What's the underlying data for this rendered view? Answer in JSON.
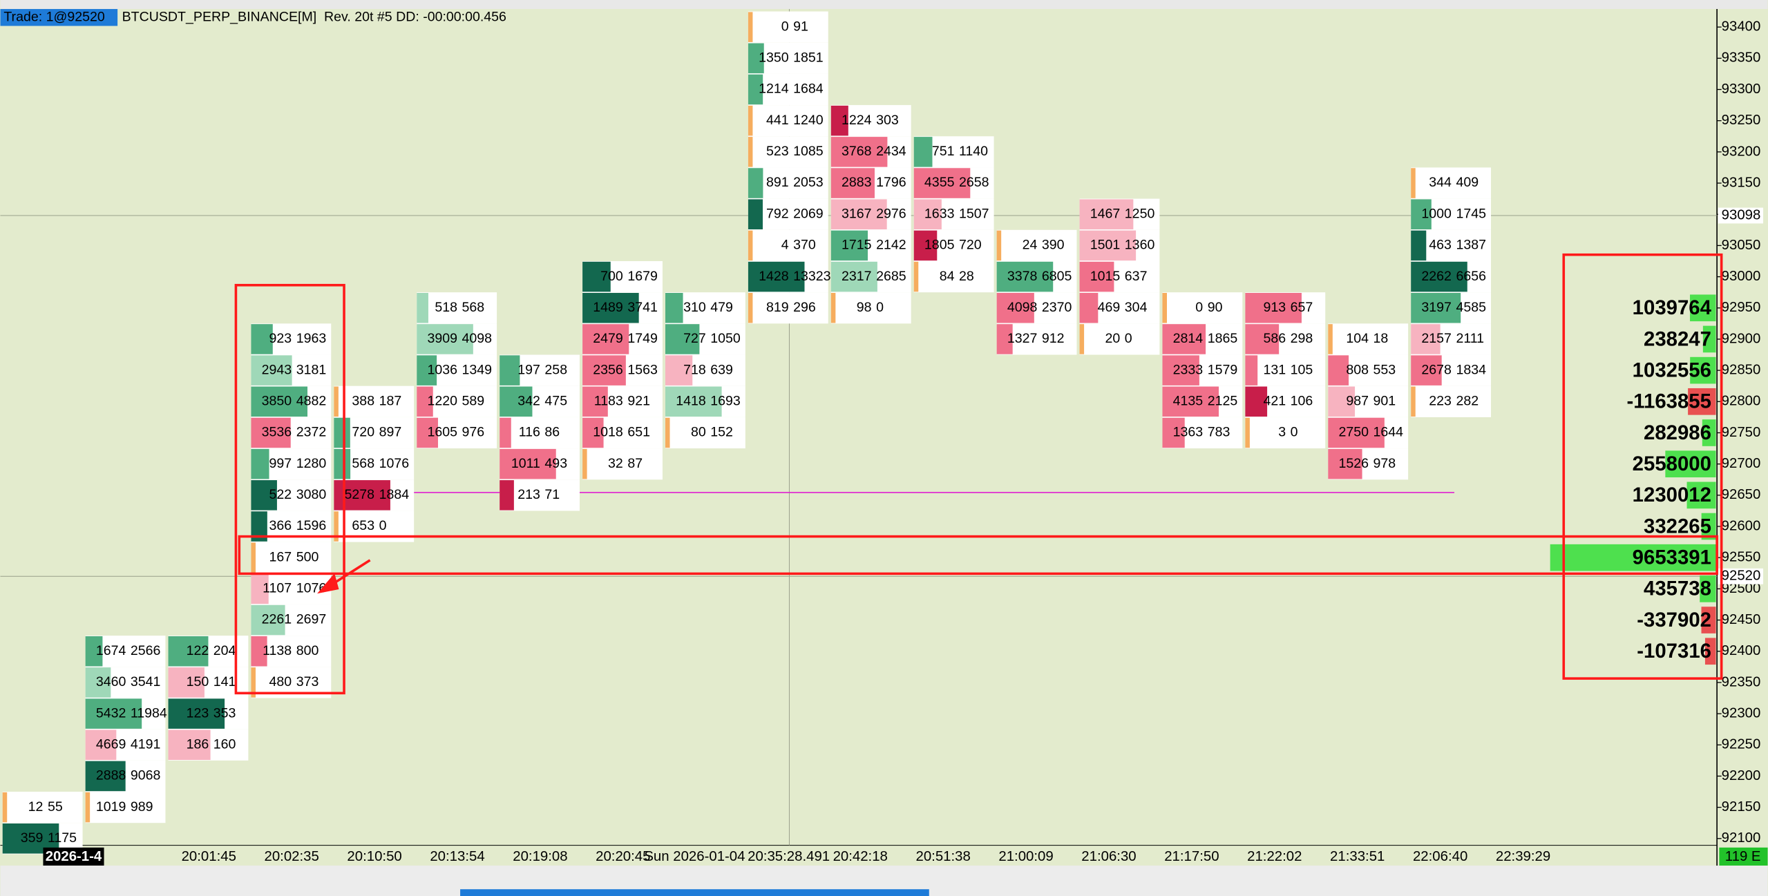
{
  "header": {
    "trade": "Trade: 1@92520",
    "symbol": "BTCUSDT_PERP_BINANCE[M]  Rev. 20t #5 DD: -00:00:00.456"
  },
  "price_axis": {
    "labels": [
      93400,
      93350,
      93300,
      93250,
      93200,
      93150,
      93100,
      93050,
      93000,
      92950,
      92900,
      92850,
      92800,
      92750,
      92700,
      92650,
      92600,
      92550,
      92500,
      92450,
      92400,
      92350,
      92300,
      92250,
      92200,
      92150,
      92100
    ],
    "markers": [
      93098,
      92520
    ]
  },
  "time_axis": {
    "date": "2026-1-4",
    "labels": [
      "20:01:45",
      "20:02:35",
      "20:10:50",
      "20:13:54",
      "20:19:08",
      "20:20:45",
      "Sun 2026-01-04",
      "20:35:28.491",
      "20:42:18",
      "20:51:38",
      "21:00:09",
      "21:06:30",
      "21:17:50",
      "21:22:02",
      "21:33:51",
      "22:06:40",
      "22:39:29"
    ],
    "status": "119 E"
  },
  "columns": [
    {
      "cells": [
        [
          92150,
          12,
          55
        ],
        [
          92100,
          359,
          1175
        ]
      ]
    },
    {
      "cells": [
        [
          92400,
          1674,
          2566
        ],
        [
          92350,
          3460,
          3541
        ],
        [
          92300,
          5432,
          11984
        ],
        [
          92250,
          4669,
          4191
        ],
        [
          92200,
          2888,
          9068
        ],
        [
          92150,
          1019,
          989
        ]
      ]
    },
    {
      "cells": [
        [
          92400,
          122,
          204
        ],
        [
          92350,
          150,
          141
        ],
        [
          92300,
          123,
          353
        ],
        [
          92250,
          186,
          160
        ]
      ]
    },
    {
      "cells": [
        [
          92900,
          923,
          1963
        ],
        [
          92850,
          2943,
          3181
        ],
        [
          92800,
          3850,
          4882
        ],
        [
          92750,
          3536,
          2372
        ],
        [
          92700,
          997,
          1280
        ],
        [
          92650,
          522,
          3080
        ],
        [
          92600,
          366,
          1596
        ],
        [
          92550,
          167,
          500
        ],
        [
          92500,
          1107,
          1076
        ],
        [
          92450,
          2261,
          2697
        ],
        [
          92400,
          1138,
          800
        ],
        [
          92350,
          480,
          373
        ]
      ]
    },
    {
      "cells": [
        [
          92800,
          388,
          187
        ],
        [
          92750,
          720,
          897
        ],
        [
          92700,
          568,
          1076
        ],
        [
          92650,
          5278,
          1884
        ],
        [
          92600,
          653,
          0
        ]
      ]
    },
    {
      "cells": [
        [
          92950,
          518,
          568
        ],
        [
          92900,
          3909,
          4098
        ],
        [
          92850,
          1036,
          1349
        ],
        [
          92800,
          1220,
          589
        ],
        [
          92750,
          1605,
          976
        ]
      ]
    },
    {
      "cells": [
        [
          92850,
          197,
          258
        ],
        [
          92800,
          342,
          475
        ],
        [
          92750,
          116,
          86
        ],
        [
          92700,
          1011,
          493
        ],
        [
          92650,
          213,
          71
        ]
      ]
    },
    {
      "cells": [
        [
          93000,
          700,
          1679
        ],
        [
          92950,
          1489,
          3741
        ],
        [
          92900,
          2479,
          1749
        ],
        [
          92850,
          2356,
          1563
        ],
        [
          92800,
          1183,
          921
        ],
        [
          92750,
          1018,
          651
        ],
        [
          92700,
          32,
          87
        ]
      ]
    },
    {
      "cells": [
        [
          92950,
          310,
          479
        ],
        [
          92900,
          727,
          1050
        ],
        [
          92850,
          718,
          639
        ],
        [
          92800,
          1418,
          1693
        ],
        [
          92750,
          80,
          152
        ]
      ]
    },
    {
      "cells": [
        [
          93400,
          0,
          91
        ],
        [
          93350,
          1350,
          1851
        ],
        [
          93300,
          1214,
          1684
        ],
        [
          93250,
          441,
          1240
        ],
        [
          93200,
          523,
          1085
        ],
        [
          93150,
          891,
          2053
        ],
        [
          93100,
          792,
          2069
        ],
        [
          93050,
          4,
          370
        ],
        [
          93000,
          1428,
          13323
        ],
        [
          92950,
          819,
          296
        ]
      ]
    },
    {
      "cells": [
        [
          93250,
          1224,
          303
        ],
        [
          93200,
          3768,
          2434
        ],
        [
          93150,
          2883,
          1796
        ],
        [
          93100,
          3167,
          2976
        ],
        [
          93050,
          1715,
          2142
        ],
        [
          93000,
          2317,
          2685
        ],
        [
          92950,
          98,
          0
        ]
      ]
    },
    {
      "cells": [
        [
          93200,
          751,
          1140
        ],
        [
          93150,
          4355,
          2658
        ],
        [
          93100,
          1633,
          1507
        ],
        [
          93050,
          1805,
          720
        ],
        [
          93000,
          84,
          28
        ]
      ]
    },
    {
      "cells": [
        [
          93050,
          24,
          390
        ],
        [
          93000,
          3378,
          6805
        ],
        [
          92950,
          4098,
          2370
        ],
        [
          92900,
          1327,
          912
        ]
      ]
    },
    {
      "cells": [
        [
          93100,
          1467,
          1250
        ],
        [
          93050,
          1501,
          1360
        ],
        [
          93000,
          1015,
          637
        ],
        [
          92950,
          469,
          304
        ],
        [
          92900,
          20,
          0
        ]
      ]
    },
    {
      "cells": [
        [
          92950,
          0,
          90
        ],
        [
          92900,
          2814,
          1865
        ],
        [
          92850,
          2333,
          1579
        ],
        [
          92800,
          4135,
          2125
        ],
        [
          92750,
          1363,
          783
        ]
      ]
    },
    {
      "cells": [
        [
          92950,
          913,
          657
        ],
        [
          92900,
          586,
          298
        ],
        [
          92850,
          131,
          105
        ],
        [
          92800,
          421,
          106
        ],
        [
          92750,
          3,
          0
        ]
      ]
    },
    {
      "cells": [
        [
          92900,
          104,
          18
        ],
        [
          92850,
          808,
          553
        ],
        [
          92800,
          987,
          901
        ],
        [
          92750,
          2750,
          1644
        ],
        [
          92700,
          1526,
          978
        ]
      ]
    },
    {
      "cells": [
        [
          93150,
          344,
          409
        ],
        [
          93100,
          1000,
          1745
        ],
        [
          93050,
          463,
          1387
        ],
        [
          93000,
          2262,
          6656
        ],
        [
          92950,
          3197,
          4585
        ],
        [
          92900,
          2157,
          2111
        ],
        [
          92850,
          2678,
          1834
        ],
        [
          92800,
          223,
          282
        ]
      ]
    }
  ],
  "profile": [
    [
      92950,
      1039764
    ],
    [
      92900,
      238247
    ],
    [
      92850,
      1032556
    ],
    [
      92800,
      -1163855
    ],
    [
      92750,
      282986
    ],
    [
      92700,
      2558000
    ],
    [
      92650,
      1230012
    ],
    [
      92600,
      332265
    ],
    [
      92550,
      9653391
    ],
    [
      92500,
      435738
    ],
    [
      92450,
      -337902
    ],
    [
      92400,
      -107316
    ]
  ]
}
